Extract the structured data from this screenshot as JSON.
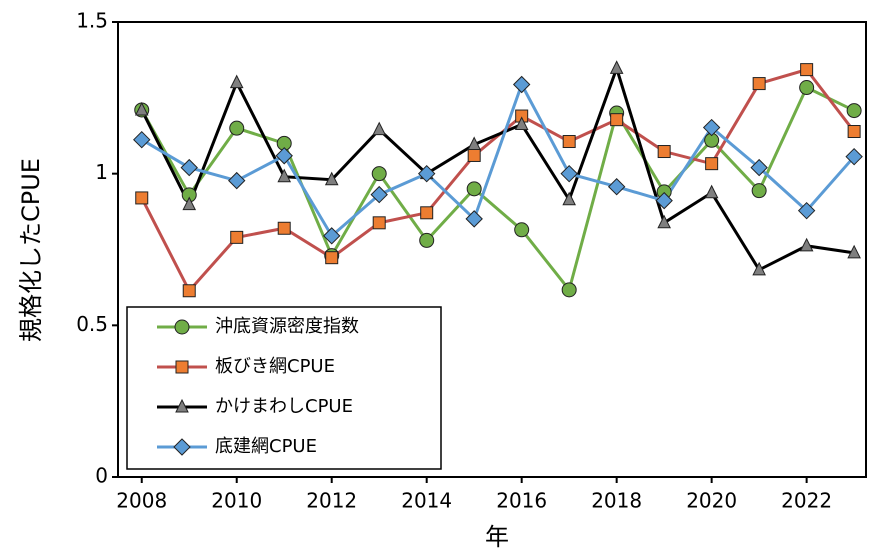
{
  "chart_data": {
    "type": "line",
    "x_label": "年",
    "y_label": "規格化したCPUE",
    "x": [
      2008,
      2009,
      2010,
      2011,
      2012,
      2013,
      2014,
      2015,
      2016,
      2017,
      2018,
      2019,
      2020,
      2021,
      2022,
      2023
    ],
    "xlim": [
      2007.5,
      2023.25
    ],
    "xticks": [
      2008,
      2010,
      2012,
      2014,
      2016,
      2018,
      2020,
      2022
    ],
    "ylim": [
      0,
      1.5
    ],
    "yticks": [
      0,
      0.5,
      1,
      1.5
    ],
    "legend": "bottom-left",
    "series": [
      {
        "name": "沖底資源密度指数",
        "color": "#70ad47",
        "marker": "circle",
        "marker_color": "#70ad47",
        "values": [
          1.21,
          0.93,
          1.15,
          1.1,
          0.73,
          1.0,
          0.78,
          0.95,
          0.815,
          0.617,
          1.2,
          0.94,
          1.11,
          0.944,
          1.284,
          1.208
        ]
      },
      {
        "name": "板びき網CPUE",
        "color": "#c0504d",
        "marker": "square",
        "marker_color": "#ed7d31",
        "values": [
          0.92,
          0.614,
          0.79,
          0.82,
          0.723,
          0.838,
          0.871,
          1.06,
          1.19,
          1.106,
          1.178,
          1.073,
          1.033,
          1.297,
          1.343,
          1.139
        ]
      },
      {
        "name": "かけまわしCPUE",
        "color": "#000000",
        "marker": "triangle",
        "marker_color": "#7f7f7f",
        "values": [
          1.21,
          0.898,
          1.3,
          0.99,
          0.98,
          1.145,
          1.0,
          1.096,
          1.162,
          0.914,
          1.347,
          0.838,
          0.937,
          0.683,
          0.762,
          0.739
        ]
      },
      {
        "name": "底建網CPUE",
        "color": "#5b9bd5",
        "marker": "diamond",
        "marker_color": "#5b9bd5",
        "values": [
          1.112,
          1.02,
          0.977,
          1.059,
          0.795,
          0.931,
          1.0,
          0.851,
          1.294,
          1.0,
          0.957,
          0.911,
          1.152,
          1.02,
          0.878,
          1.056
        ]
      }
    ]
  }
}
